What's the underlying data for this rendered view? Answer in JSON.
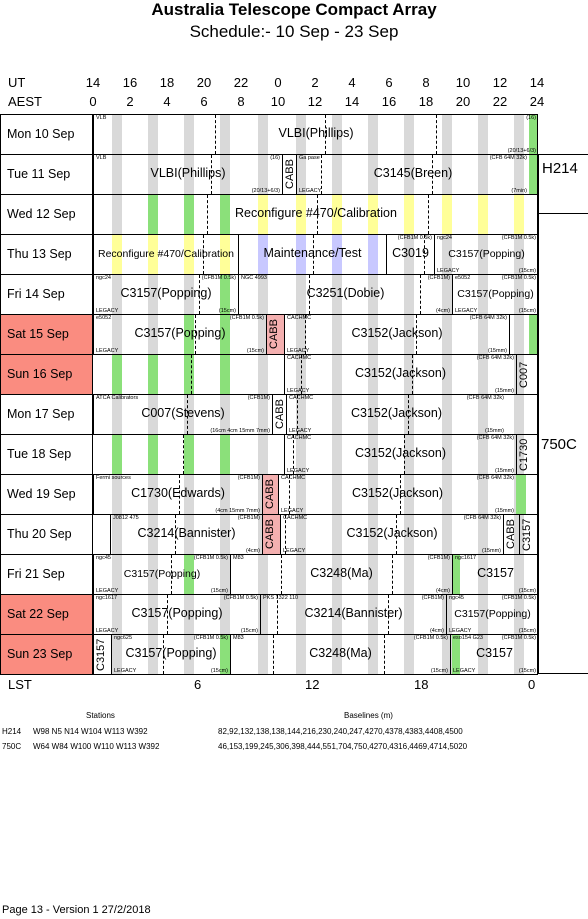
{
  "title": "Australia Telescope Compact Array",
  "subtitle": "Schedule:- 10 Sep - 23 Sep",
  "ut_label": "UT",
  "aest_label": "AEST",
  "ut_hours": [
    "14",
    "16",
    "18",
    "20",
    "22",
    "0",
    "2",
    "4",
    "6",
    "8",
    "10",
    "12",
    "14"
  ],
  "aest_hours": [
    "0",
    "2",
    "4",
    "6",
    "8",
    "10",
    "12",
    "14",
    "16",
    "18",
    "20",
    "22",
    "24"
  ],
  "lst_label": "LST",
  "lst_ticks": [
    "6",
    "12",
    "18",
    "0"
  ],
  "configs": [
    "H214",
    "750C"
  ],
  "days": [
    {
      "label": "Mon  10 Sep",
      "weekend": false,
      "blocks": [
        {
          "x0": 93,
          "x1": 538,
          "text": "VLBI(Phillips)",
          "tl": "VLB",
          "tr": "(16)",
          "br": "(20/13+6/3)"
        }
      ],
      "green": [
        529
      ]
    },
    {
      "label": "Tue  11 Sep",
      "weekend": false,
      "blocks": [
        {
          "x0": 93,
          "x1": 282,
          "text": "VLBI(Phillips)",
          "tl": "VLB",
          "tr": "(16)",
          "br": "(20/13+6/3)"
        },
        {
          "x0": 282,
          "x1": 296,
          "vtext": "CABB"
        },
        {
          "x0": 296,
          "x1": 529,
          "text": "C3145(Breen)",
          "tl": "Ga pase",
          "tr": "(CFB 64M 32k)",
          "bl": "LEGACY",
          "br": "(7min)"
        }
      ],
      "green": [
        529
      ]
    },
    {
      "label": "Wed  12 Sep",
      "weekend": false,
      "blocks": [
        {
          "x0": 93,
          "x1": 538,
          "text": "Reconfigure #470/Calibration",
          "textx": 295
        }
      ],
      "green": [
        148,
        184,
        220
      ],
      "yellow": [
        258,
        296,
        332,
        368,
        404,
        442,
        478,
        514
      ]
    },
    {
      "label": "Thu  13 Sep",
      "weekend": false,
      "blocks": [
        {
          "x0": 93,
          "x1": 238,
          "text": "Reconfigure #470/Calibration",
          "small": true
        },
        {
          "x0": 238,
          "x1": 386,
          "text": "Maintenance/Test"
        },
        {
          "x0": 386,
          "x1": 434,
          "text": "C3019",
          "tr": "(CFB1M 0.5k)"
        },
        {
          "x0": 434,
          "x1": 538,
          "text": "C3157(Popping)",
          "small": true,
          "tl": "ngc24",
          "tr": "(CFB1M 0.5k)",
          "bl": "LEGACY",
          "br": "(15cm)"
        }
      ],
      "yellow": [
        112,
        148,
        184,
        220
      ],
      "lavender": [
        258,
        296,
        332,
        368
      ]
    },
    {
      "label": "Fri   14 Sep",
      "weekend": false,
      "blocks": [
        {
          "x0": 93,
          "x1": 238,
          "text": "C3157(Popping)",
          "tl": "ngc24",
          "tr": "(CFB1M 0.5k)",
          "bl": "LEGACY",
          "br": "(15cm)"
        },
        {
          "x0": 238,
          "x1": 452,
          "text": "C3251(Dobie)",
          "tl": "NGC 4993",
          "tr": "(CFB1M)",
          "br": "(4cm)"
        },
        {
          "x0": 452,
          "x1": 538,
          "text": "C3157(Popping)",
          "small": true,
          "tl": "e5052",
          "tr": "(CFB1M 0.5k)",
          "bl": "LEGACY",
          "br": "(15cm)"
        }
      ],
      "green": [
        220
      ]
    },
    {
      "label": "Sat   15 Sep",
      "weekend": true,
      "blocks": [
        {
          "x0": 93,
          "x1": 266,
          "text": "C3157(Popping)",
          "tl": "e5052",
          "tr": "(CFB1M 0.5k)",
          "bl": "LEGACY",
          "br": "(15cm)"
        },
        {
          "x0": 266,
          "x1": 284,
          "vtext": "CABB",
          "pink": true
        },
        {
          "x0": 284,
          "x1": 509,
          "text": "C3152(Jackson)",
          "tl": "CACHMC",
          "tr": "(CFB 64M 32k)",
          "bl": "LEGACY",
          "br": "(15mm)"
        },
        {
          "x0": 509,
          "x1": 538
        }
      ],
      "green": [
        184,
        220,
        529
      ]
    },
    {
      "label": "Sun   16 Sep",
      "weekend": true,
      "blocks": [
        {
          "x0": 284,
          "x1": 516,
          "text": "C3152(Jackson)",
          "tl": "CACHMC",
          "tr": "(CFB 64M 32k)",
          "bl": "LEGACY",
          "br": "(15mm)"
        },
        {
          "x0": 516,
          "x1": 538,
          "vtext": "C007"
        }
      ],
      "green": [
        112,
        148,
        184,
        220
      ]
    },
    {
      "label": "Mon  17 Sep",
      "weekend": false,
      "blocks": [
        {
          "x0": 93,
          "x1": 272,
          "text": "C007(Stevens)",
          "tl": "ATCA Calibrators",
          "tr": "(CFB1M)",
          "br": "(16cm 4cm 15mm 7mm)"
        },
        {
          "x0": 272,
          "x1": 286,
          "vtext": "CABB"
        },
        {
          "x0": 286,
          "x1": 506,
          "text": "C3152(Jackson)",
          "tl": "CACHMC",
          "tr": "(CFB 64M 32k)",
          "bl": "LEGACY",
          "br": "(15mm)"
        }
      ]
    },
    {
      "label": "Tue   18 Sep",
      "weekend": false,
      "blocks": [
        {
          "x0": 284,
          "x1": 516,
          "text": "C3152(Jackson)",
          "tl": "CACHMC",
          "tr": "(CFB 64M 32k)",
          "bl": "LEGACY",
          "br": "(15mm)"
        },
        {
          "x0": 516,
          "x1": 538,
          "vtext": "C1730"
        }
      ],
      "green": [
        112,
        148,
        184,
        220
      ]
    },
    {
      "label": "Wed  19 Sep",
      "weekend": false,
      "blocks": [
        {
          "x0": 93,
          "x1": 262,
          "text": "C1730(Edwards)",
          "tl": "Fermi sources",
          "tr": "(CFB1M)",
          "br": "(4cm 15mm 7mm)"
        },
        {
          "x0": 262,
          "x1": 278,
          "vtext": "CABB",
          "pink": true
        },
        {
          "x0": 278,
          "x1": 516,
          "text": "C3152(Jackson)",
          "tl": "CACHMC",
          "tr": "(CFB 64M 32k)",
          "bl": "LEGACY",
          "br": "(15mm)"
        }
      ],
      "green": [
        516
      ]
    },
    {
      "label": "Thu  20 Sep",
      "weekend": false,
      "blocks": [
        {
          "x0": 110,
          "x1": 262,
          "text": "C3214(Bannister)",
          "tl": "J0812 475",
          "tr": "(CFB1M)",
          "br": "(4cm)"
        },
        {
          "x0": 262,
          "x1": 280,
          "vtext": "CABB",
          "pink": true
        },
        {
          "x0": 280,
          "x1": 503,
          "text": "C3152(Jackson)",
          "tl": "CACHMC",
          "tr": "(CFB 64M 32k)",
          "bl": "LEGACY",
          "br": "(15mm)"
        },
        {
          "x0": 503,
          "x1": 519,
          "vtext": "CABB"
        },
        {
          "x0": 519,
          "x1": 538,
          "vtext": "C3157"
        }
      ]
    },
    {
      "label": "Fri   21 Sep",
      "weekend": false,
      "blocks": [
        {
          "x0": 93,
          "x1": 230,
          "text": "C3157(Popping)",
          "small": true,
          "tl": "ngc45",
          "tr": "(CFB1M 0.5k)",
          "bl": "LEGACY",
          "br": "(15cm)"
        },
        {
          "x0": 230,
          "x1": 452,
          "text": "C3248(Ma)",
          "tl": "M83",
          "tr": "(CFB1M)",
          "br": "(4cm)"
        },
        {
          "x0": 452,
          "x1": 538,
          "text": "C3157",
          "tl": "ngc1617",
          "br": "(15cm)"
        }
      ],
      "green": [
        184,
        452
      ]
    },
    {
      "label": "Sat   22 Sep",
      "weekend": true,
      "blocks": [
        {
          "x0": 93,
          "x1": 260,
          "text": "C3157(Popping)",
          "tl": "ngc1617",
          "tr": "(CFB1M 0.5k)",
          "bl": "LEGACY",
          "br": "(15cm)"
        },
        {
          "x0": 260,
          "x1": 446,
          "text": "C3214(Bannister)",
          "tl": "PKS 1322 110",
          "tr": "(CFB1M)",
          "br": "(4cm)"
        },
        {
          "x0": 446,
          "x1": 538,
          "text": "C3157(Popping)",
          "small": true,
          "tl": "ngc45",
          "tr": "(CFB1M 0.5k)",
          "bl": "LEGACY",
          "br": "(15cm)"
        }
      ]
    },
    {
      "label": "Sun   23 Sep",
      "weekend": true,
      "blocks": [
        {
          "x0": 93,
          "x1": 111,
          "vtext": "C3157"
        },
        {
          "x0": 111,
          "x1": 230,
          "text": "C3157(Popping)",
          "tl": "ngc625",
          "tr": "(CFB1M 0.5k)",
          "bl": "LEGACY",
          "br": "(15cm)"
        },
        {
          "x0": 230,
          "x1": 450,
          "text": "C3248(Ma)",
          "tl": "M83",
          "tr": "(CFB1M 0.5k)",
          "br": "(15cm)"
        },
        {
          "x0": 450,
          "x1": 538,
          "text": "C3157",
          "tl": "eso154 G23",
          "tr": "(CFB1M 0.5k)",
          "bl": "LEGACY",
          "br": "(15cm)"
        }
      ],
      "green": [
        220,
        450
      ]
    }
  ],
  "stations_header": "Stations",
  "baselines_header": "Baselines (m)",
  "array_rows": [
    {
      "config": "H214",
      "stations": "W98 N5 N14 W104 W113 W392",
      "baselines": "82,92,132,138,138,144,216,230,240,247,4270,4378,4383,4408,4500"
    },
    {
      "config": "750C",
      "stations": "W64 W84 W100 W110 W113 W392",
      "baselines": "46,153,199,245,306,398,444,551,704,750,4270,4316,4469,4714,5020"
    }
  ],
  "footer": "Page 13 - Version 1  27/2/2018",
  "colors": {
    "weekend": "#fa8c80",
    "green": "#8be07a",
    "yellow": "#ffff99",
    "lavender": "#c8c8ff",
    "grey": "#d9d9d9",
    "cabb_pink": "#f4b0b0"
  }
}
